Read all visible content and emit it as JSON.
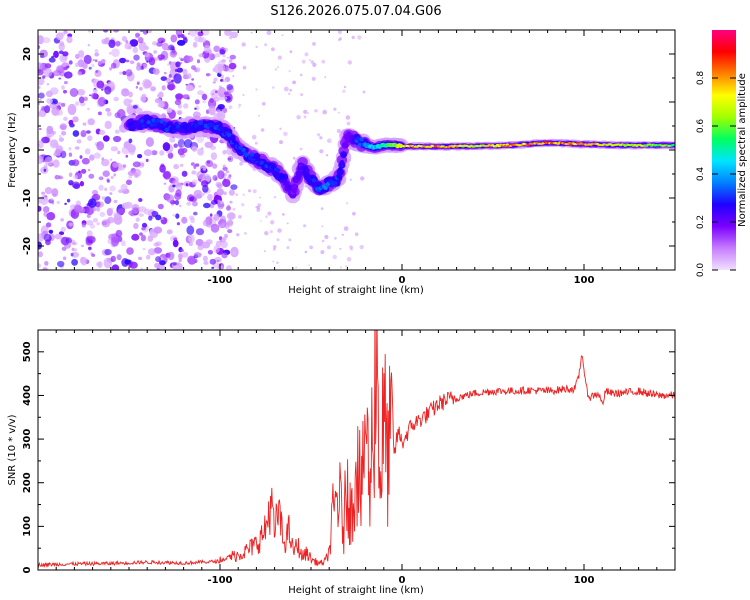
{
  "title": "S126.2026.075.07.04.G06",
  "chart_data": [
    {
      "type": "heatmap",
      "title": "S126.2026.075.07.04.G06",
      "xlabel": "Height of straight line (km)",
      "ylabel": "Frequency (Hz)",
      "xlim": [
        -200,
        150
      ],
      "ylim": [
        -25,
        25
      ],
      "x_ticks": [
        -100,
        0,
        100
      ],
      "y_ticks": [
        -20,
        -10,
        0,
        10,
        20
      ],
      "colorbar": {
        "label": "Normalized spectral amplitude",
        "range": [
          0,
          1
        ],
        "ticks": [
          "0.0",
          "0.2",
          "0.4",
          "0.6",
          "0.8"
        ],
        "tick_values": [
          0,
          0.2,
          0.4,
          0.6,
          0.8
        ],
        "colors": [
          "#f0e0ff",
          "#c77dff",
          "#7b00ff",
          "#1f00ff",
          "#0080ff",
          "#00e5ff",
          "#00ff60",
          "#a0ff00",
          "#ffff00",
          "#ff8000",
          "#ff0000",
          "#ff0080"
        ]
      },
      "ridge": {
        "x": [
          -150,
          -140,
          -130,
          -120,
          -110,
          -100,
          -95,
          -90,
          -85,
          -80,
          -75,
          -70,
          -65,
          -60,
          -55,
          -50,
          -45,
          -40,
          -35,
          -30,
          -25,
          -20,
          -15,
          -10,
          -5,
          0,
          20,
          40,
          60,
          80,
          100,
          120,
          150
        ],
        "y": [
          5,
          6,
          5,
          4.5,
          5,
          4.5,
          3,
          0,
          -1,
          -2,
          -3,
          -4,
          -6,
          -9,
          -3,
          -6,
          -8,
          -7,
          -6,
          3,
          2,
          1,
          0.5,
          1,
          1,
          0.8,
          0.7,
          0.8,
          1.0,
          1.5,
          1.2,
          1.0,
          1.0
        ],
        "amplitude": [
          0.25,
          0.3,
          0.3,
          0.28,
          0.3,
          0.3,
          0.3,
          0.32,
          0.3,
          0.28,
          0.3,
          0.3,
          0.25,
          0.2,
          0.22,
          0.3,
          0.35,
          0.35,
          0.3,
          0.2,
          0.3,
          0.35,
          0.45,
          0.5,
          0.6,
          0.75,
          0.8,
          0.7,
          0.8,
          0.85,
          0.8,
          0.7,
          0.6
        ]
      },
      "noise_region_x": [
        -200,
        -100
      ]
    },
    {
      "type": "line",
      "xlabel": "Height of straight line (km)",
      "ylabel": "SNR (10 * v/v)",
      "xlim": [
        -200,
        150
      ],
      "ylim": [
        0,
        550
      ],
      "x_ticks": [
        -100,
        0,
        100
      ],
      "y_ticks": [
        0,
        100,
        200,
        300,
        400,
        500
      ],
      "series": [
        {
          "name": "SNR",
          "color": "#ee2222",
          "x": [
            -200,
            -180,
            -160,
            -140,
            -120,
            -100,
            -95,
            -90,
            -85,
            -80,
            -75,
            -72,
            -70,
            -68,
            -65,
            -62,
            -60,
            -57,
            -55,
            -52,
            -50,
            -48,
            -45,
            -42,
            -40,
            -38,
            -35,
            -32,
            -30,
            -28,
            -25,
            -22,
            -20,
            -18,
            -16,
            -14,
            -12,
            -10,
            -8,
            -6,
            -4,
            -2,
            0,
            5,
            10,
            15,
            20,
            25,
            30,
            35,
            40,
            50,
            60,
            70,
            80,
            90,
            95,
            97,
            99,
            101,
            103,
            105,
            108,
            110,
            112,
            115,
            120,
            130,
            140,
            150
          ],
          "y": [
            12,
            14,
            15,
            18,
            16,
            20,
            30,
            35,
            45,
            60,
            90,
            160,
            80,
            140,
            60,
            90,
            45,
            55,
            30,
            40,
            25,
            20,
            15,
            20,
            45,
            120,
            180,
            90,
            230,
            110,
            280,
            150,
            380,
            170,
            330,
            540,
            200,
            350,
            250,
            310,
            270,
            320,
            290,
            330,
            345,
            360,
            380,
            390,
            395,
            400,
            405,
            410,
            410,
            412,
            410,
            415,
            415,
            440,
            500,
            420,
            395,
            400,
            405,
            380,
            410,
            405,
            405,
            410,
            400,
            400
          ]
        }
      ]
    }
  ]
}
